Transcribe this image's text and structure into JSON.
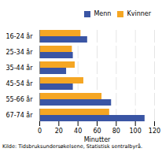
{
  "chart_data": {
    "type": "bar",
    "orientation": "horizontal",
    "categories": [
      "16-24 år",
      "25-34 år",
      "35-44 år",
      "45-54 år",
      "55-66 år",
      "67-74 år"
    ],
    "series": [
      {
        "name": "Menn",
        "color": "#3a55a4",
        "values": [
          50,
          35,
          28,
          35,
          75,
          110
        ]
      },
      {
        "name": "Kvinner",
        "color": "#f5a623",
        "values": [
          43,
          34,
          37,
          46,
          65,
          73
        ]
      }
    ],
    "xlabel": "Minutter",
    "xlim": [
      0,
      120
    ],
    "xticks": [
      0,
      20,
      40,
      60,
      80,
      100,
      120
    ],
    "grid": true,
    "legend": "upper right",
    "caption": "Kilde: Tidsbruksundersøkelsene, Statistisk sentralbyrå."
  }
}
